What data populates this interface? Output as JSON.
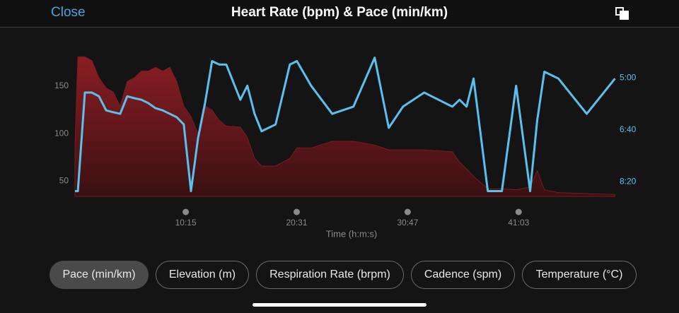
{
  "close": "Close",
  "chart_data": {
    "type": "line",
    "title": "Heart Rate (bpm) & Pace (min/km)",
    "x_label": "Time (h:m:s)",
    "x": [
      0,
      16,
      55,
      94,
      133,
      173,
      212,
      251,
      290,
      330,
      369,
      408,
      447,
      487,
      526,
      565,
      604,
      644,
      683,
      722,
      761,
      801,
      840,
      918,
      957,
      997,
      1036,
      1114,
      1193,
      1232,
      1311,
      1428,
      1546,
      1664,
      1742,
      1821,
      1939,
      2095,
      2135,
      2174,
      2213,
      2292,
      2370,
      2449,
      2527,
      2566,
      2606,
      2684,
      2841,
      2998
    ],
    "xlim": [
      0,
      3000
    ],
    "xticks": [
      {
        "value": 615,
        "label": "10:15"
      },
      {
        "value": 1231,
        "label": "20:31"
      },
      {
        "value": 1847,
        "label": "30:47"
      },
      {
        "value": 2463,
        "label": "41:03"
      }
    ],
    "ylim": [
      34,
      185
    ],
    "yticks": [
      50,
      100,
      150
    ],
    "y2lim": [
      8.8,
      4.2
    ],
    "y2ticks": [
      {
        "value": 5,
        "label": "5:00"
      },
      {
        "value": 6.67,
        "label": "6:40"
      },
      {
        "value": 8.33,
        "label": "8:20"
      }
    ],
    "series": [
      {
        "type": "area",
        "color": "#7a1c20",
        "values": [
          88,
          181,
          181,
          177,
          159,
          148,
          144,
          129,
          155,
          159,
          166,
          166,
          170,
          166,
          170,
          155,
          129,
          118,
          100,
          129,
          125,
          114,
          108,
          107,
          96,
          74,
          66,
          66,
          74,
          85,
          85,
          92,
          92,
          88,
          83,
          83,
          83,
          81,
          70,
          63,
          55,
          42,
          42,
          41,
          44,
          61,
          41,
          38,
          37,
          36
        ]
      },
      {
        "type": "line",
        "axis": "y2",
        "color": "#5bc0eb",
        "values": [
          8.63,
          8.63,
          5.47,
          5.47,
          5.59,
          6.04,
          6.1,
          6.15,
          5.59,
          5.65,
          5.7,
          5.81,
          5.97,
          6.04,
          6.15,
          6.26,
          6.49,
          8.63,
          6.94,
          5.81,
          4.46,
          4.57,
          4.57,
          5.7,
          5.25,
          6.15,
          6.71,
          6.49,
          4.57,
          4.46,
          5.25,
          6.15,
          5.92,
          4.35,
          6.6,
          5.92,
          5.47,
          5.92,
          5.7,
          5.92,
          5.02,
          8.63,
          8.63,
          5.25,
          8.63,
          6.37,
          4.8,
          5.02,
          6.15,
          5.02
        ]
      }
    ]
  },
  "buttons": [
    "Pace (min/km)",
    "Elevation (m)",
    "Respiration Rate (brpm)",
    "Cadence (spm)",
    "Temperature (°C)"
  ]
}
